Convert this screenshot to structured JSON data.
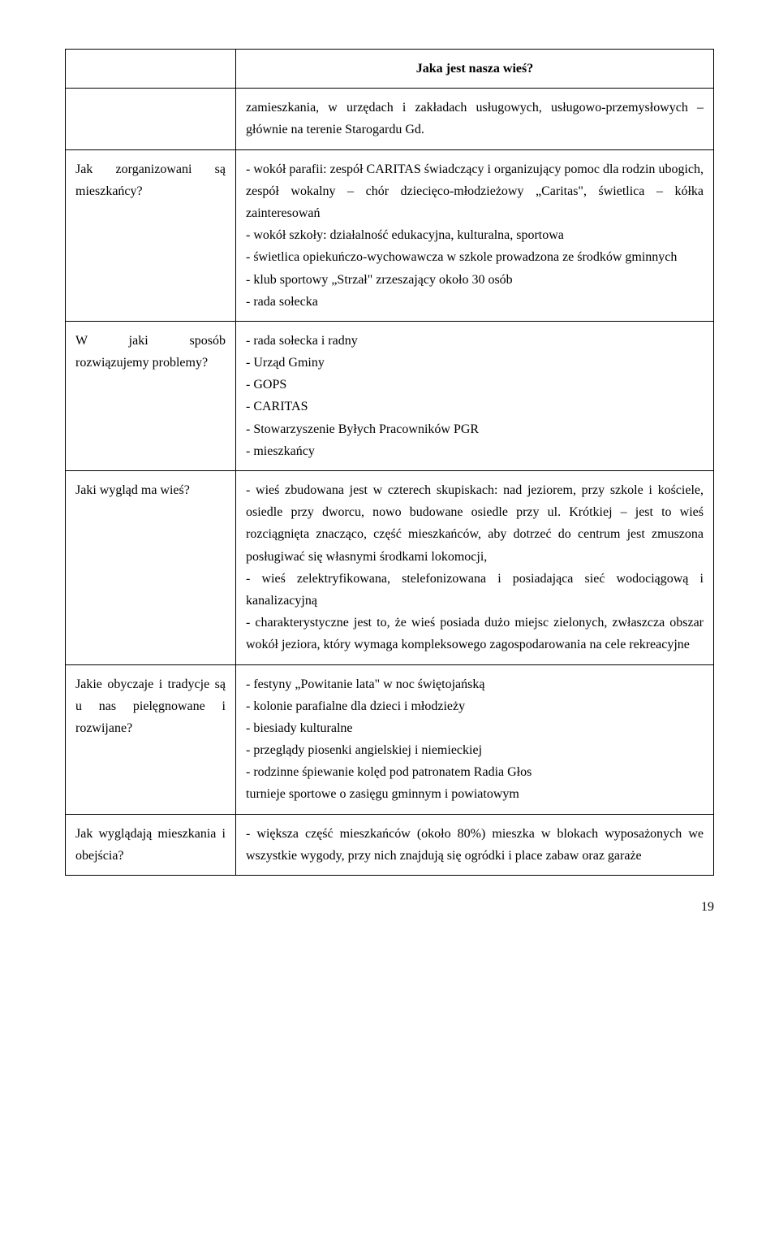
{
  "title": "Jaka jest nasza wieś?",
  "rows": [
    {
      "left": "",
      "right": "zamieszkania, w urzędach i zakładach usługowych, usługowo-przemysłowych – głównie na terenie Starogardu Gd."
    },
    {
      "left": "Jak zorganizowani są mieszkańcy?",
      "right": "- wokół parafii: zespół CARITAS świadczący i organizujący pomoc dla rodzin ubogich, zespół wokalny – chór dziecięco-młodzieżowy „Caritas\", świetlica – kółka zainteresowań\n- wokół szkoły: działalność edukacyjna, kulturalna, sportowa\n- świetlica opiekuńczo-wychowawcza w szkole prowadzona ze środków gminnych\n- klub sportowy „Strzał\" zrzeszający około 30 osób\n- rada sołecka"
    },
    {
      "left": "W jaki sposób rozwiązujemy problemy?",
      "right": "- rada sołecka i radny\n- Urząd Gminy\n- GOPS\n- CARITAS\n- Stowarzyszenie Byłych Pracowników PGR\n- mieszkańcy"
    },
    {
      "left": "Jaki wygląd ma wieś?",
      "right": "- wieś zbudowana jest w czterech skupiskach: nad jeziorem, przy szkole i kościele, osiedle przy dworcu, nowo budowane osiedle przy ul. Krótkiej – jest to wieś rozciągnięta znacząco, część mieszkańców, aby dotrzeć do centrum jest zmuszona posługiwać się własnymi środkami lokomocji,\n- wieś zelektryfikowana, stelefonizowana i posiadająca sieć wodociągową i kanalizacyjną\n- charakterystyczne jest to, że wieś posiada dużo miejsc zielonych, zwłaszcza obszar wokół jeziora, który wymaga kompleksowego zagospodarowania na cele rekreacyjne"
    },
    {
      "left": "Jakie obyczaje i tradycje są u nas pielęgnowane i rozwijane?",
      "right": "- festyny „Powitanie lata\" w noc świętojańską\n- kolonie parafialne dla dzieci i młodzieży\n- biesiady kulturalne\n- przeglądy piosenki angielskiej i niemieckiej\n- rodzinne śpiewanie kolęd pod patronatem Radia Głos\nturnieje sportowe o zasięgu gminnym i powiatowym"
    },
    {
      "left": "Jak wyglądają mieszkania i obejścia?",
      "right": "- większa część mieszkańców (około 80%) mieszka w blokach wyposażonych we wszystkie wygody, przy nich znajdują się ogródki i place zabaw oraz garaże"
    }
  ],
  "pageNumber": "19",
  "colors": {
    "text": "#000000",
    "background": "#ffffff",
    "border": "#000000"
  },
  "typography": {
    "fontFamily": "Times New Roman",
    "baseFontSize": 16,
    "titleFontSize": 16,
    "titleWeight": "bold",
    "lineHeight": 1.7
  },
  "layout": {
    "leftColWidthPx": 185,
    "pagePadding": [
      60,
      80,
      40,
      80
    ]
  }
}
